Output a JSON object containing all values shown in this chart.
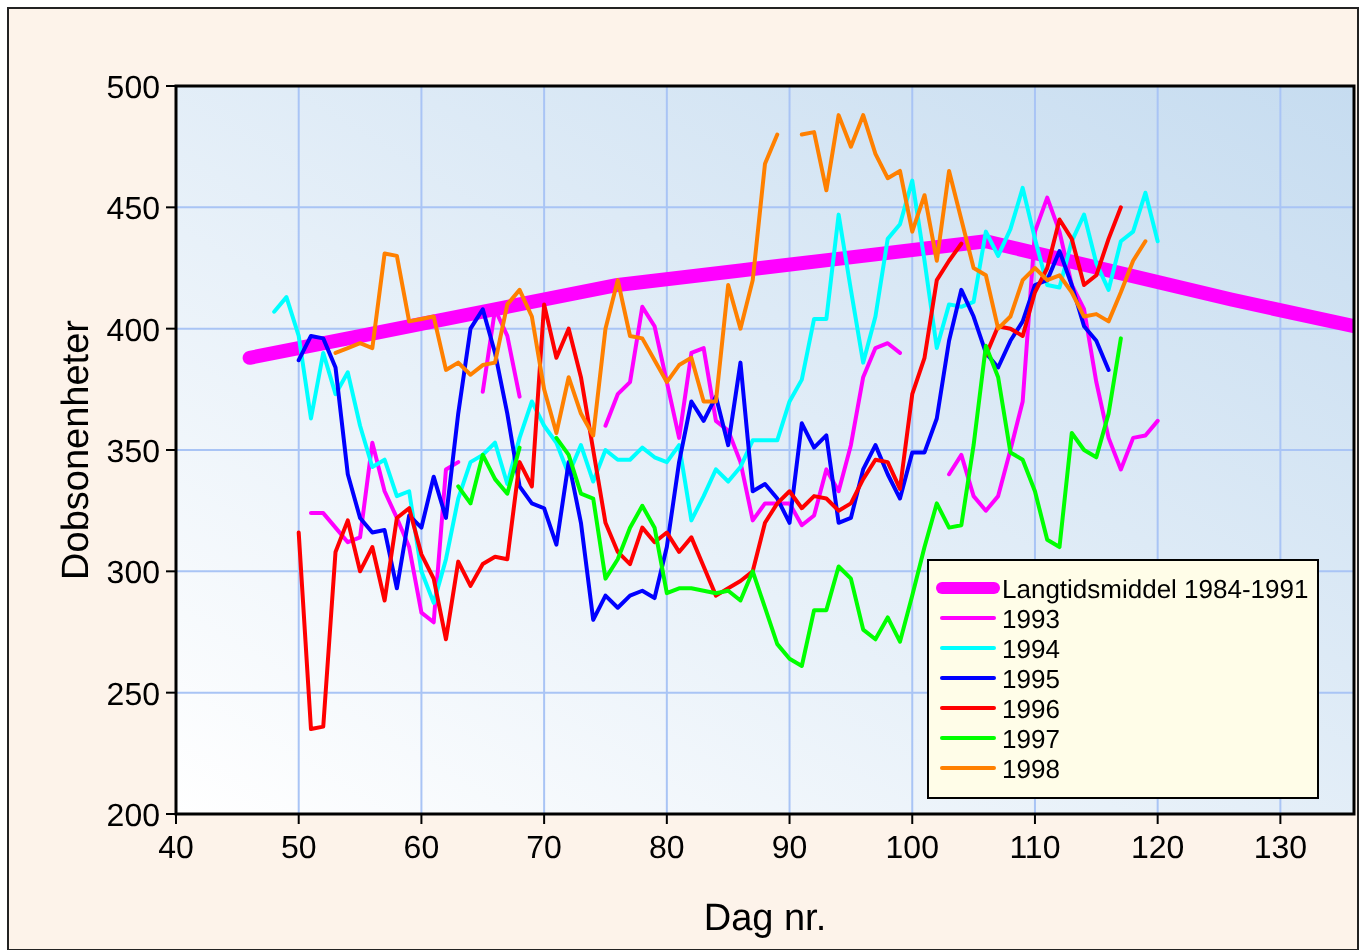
{
  "chart_data": {
    "type": "line",
    "xlabel": "Dag nr.",
    "ylabel": "Dobsonenheter",
    "xlim": [
      40,
      136
    ],
    "ylim": [
      200,
      500
    ],
    "xticks": [
      40,
      50,
      60,
      70,
      80,
      90,
      100,
      110,
      120,
      130
    ],
    "yticks": [
      200,
      250,
      300,
      350,
      400,
      450,
      500
    ],
    "grid": true,
    "legend": "bottom right",
    "line_style": "solid",
    "series": [
      {
        "name": "Langtidsmiddel 1984-1991",
        "color": "#ff00ff",
        "x": [
          46,
          56,
          66,
          76,
          86,
          96,
          106,
          116,
          126,
          136
        ],
        "values": [
          388,
          398,
          408,
          418,
          424,
          430,
          436,
          424,
          412,
          401
        ]
      },
      {
        "name": "1993",
        "color": "#ff00ff",
        "x": [
          51,
          52,
          53,
          54,
          55,
          56,
          57,
          58,
          59,
          60,
          61,
          62,
          63,
          64,
          65,
          66,
          67,
          68,
          69,
          75,
          76,
          77,
          78,
          79,
          80,
          81,
          82,
          83,
          84,
          85,
          86,
          87,
          88,
          89,
          90,
          91,
          92,
          93,
          94,
          95,
          96,
          97,
          98,
          99,
          100,
          103,
          104,
          105,
          106,
          107,
          108,
          109,
          110,
          111,
          112,
          113,
          114,
          115,
          116,
          117,
          118,
          119,
          120
        ],
        "values": [
          324,
          324,
          318,
          312,
          314,
          353,
          333,
          322,
          310,
          283,
          279,
          342,
          345,
          null,
          374,
          408,
          397,
          372,
          null,
          360,
          373,
          378,
          409,
          401,
          378,
          355,
          390,
          392,
          362,
          358,
          345,
          321,
          328,
          328,
          328,
          319,
          323,
          342,
          333,
          352,
          380,
          392,
          394,
          390,
          null,
          340,
          348,
          331,
          325,
          331,
          350,
          370,
          440,
          454,
          440,
          418,
          408,
          378,
          355,
          342,
          355,
          356,
          362
        ]
      },
      {
        "name": "1994",
        "color": "#00ffff",
        "x": [
          48,
          49,
          50,
          51,
          52,
          53,
          54,
          55,
          56,
          57,
          58,
          59,
          60,
          61,
          62,
          63,
          64,
          65,
          66,
          67,
          68,
          69,
          70,
          71,
          72,
          73,
          74,
          75,
          76,
          77,
          78,
          79,
          80,
          81,
          82,
          83,
          84,
          85,
          86,
          87,
          88,
          89,
          90,
          91,
          92,
          93,
          94,
          95,
          96,
          97,
          98,
          99,
          100,
          101,
          102,
          103,
          104,
          105,
          106,
          107,
          108,
          109,
          110,
          111,
          112,
          113,
          114,
          115,
          116,
          117,
          118,
          119,
          120
        ],
        "values": [
          407,
          413,
          397,
          363,
          390,
          373,
          382,
          360,
          343,
          346,
          331,
          333,
          300,
          287,
          305,
          330,
          345,
          348,
          353,
          336,
          355,
          370,
          360,
          353,
          340,
          352,
          337,
          350,
          346,
          346,
          351,
          347,
          345,
          352,
          321,
          331,
          342,
          337,
          343,
          354,
          354,
          354,
          370,
          379,
          404,
          404,
          447,
          416,
          386,
          405,
          437,
          443,
          461,
          428,
          392,
          410,
          409,
          411,
          440,
          430,
          441,
          458,
          437,
          418,
          417,
          436,
          447,
          427,
          416,
          436,
          440,
          456,
          436
        ]
      },
      {
        "name": "1995",
        "color": "#0000ff",
        "x": [
          50,
          51,
          52,
          53,
          54,
          55,
          56,
          57,
          58,
          59,
          60,
          61,
          62,
          63,
          64,
          65,
          66,
          67,
          68,
          69,
          70,
          71,
          72,
          73,
          74,
          75,
          76,
          77,
          78,
          79,
          80,
          81,
          82,
          83,
          84,
          85,
          86,
          87,
          88,
          89,
          90,
          91,
          92,
          93,
          94,
          95,
          96,
          97,
          98,
          99,
          100,
          101,
          102,
          103,
          104,
          105,
          106,
          107,
          108,
          109,
          110,
          111,
          112,
          113,
          114,
          115,
          116
        ],
        "values": [
          387,
          397,
          396,
          384,
          340,
          322,
          316,
          317,
          293,
          323,
          318,
          339,
          322,
          365,
          400,
          408,
          390,
          365,
          335,
          328,
          326,
          311,
          345,
          320,
          280,
          290,
          285,
          290,
          292,
          289,
          310,
          345,
          370,
          362,
          372,
          352,
          386,
          333,
          336,
          330,
          320,
          361,
          351,
          356,
          320,
          322,
          342,
          352,
          340,
          330,
          349,
          349,
          363,
          395,
          416,
          405,
          390,
          384,
          395,
          403,
          418,
          420,
          432,
          418,
          401,
          395,
          383
        ]
      },
      {
        "name": "1996",
        "color": "#ff0000",
        "x": [
          50,
          51,
          52,
          53,
          54,
          55,
          56,
          57,
          58,
          59,
          60,
          61,
          62,
          63,
          64,
          65,
          66,
          67,
          68,
          69,
          70,
          71,
          72,
          73,
          74,
          75,
          76,
          77,
          78,
          79,
          80,
          81,
          82,
          83,
          84,
          85,
          86,
          87,
          88,
          89,
          90,
          91,
          92,
          93,
          94,
          95,
          96,
          97,
          98,
          99,
          100,
          101,
          102,
          103,
          104,
          105,
          106,
          107,
          108,
          109,
          110,
          111,
          112,
          113,
          114,
          115,
          116,
          117
        ],
        "values": [
          316,
          235,
          236,
          308,
          321,
          300,
          310,
          288,
          322,
          326,
          307,
          297,
          272,
          304,
          294,
          303,
          306,
          305,
          345,
          335,
          410,
          388,
          400,
          380,
          350,
          320,
          308,
          303,
          318,
          312,
          316,
          308,
          314,
          302,
          290,
          293,
          296,
          300,
          320,
          328,
          333,
          326,
          331,
          330,
          325,
          328,
          338,
          346,
          345,
          334,
          373,
          388,
          420,
          428,
          435,
          null,
          389,
          401,
          400,
          397,
          415,
          425,
          445,
          437,
          418,
          422,
          437,
          450
        ]
      },
      {
        "name": "1997",
        "color": "#00ff00",
        "x": [
          63,
          64,
          65,
          66,
          67,
          68,
          69,
          71,
          72,
          73,
          74,
          75,
          76,
          77,
          78,
          79,
          80,
          81,
          82,
          83,
          84,
          85,
          86,
          87,
          88,
          89,
          90,
          91,
          92,
          93,
          94,
          95,
          96,
          97,
          98,
          99,
          100,
          101,
          102,
          103,
          104,
          105,
          106,
          107,
          108,
          109,
          110,
          111,
          112,
          113,
          114,
          115,
          116,
          117
        ],
        "values": [
          335,
          328,
          348,
          338,
          332,
          351,
          null,
          355,
          348,
          332,
          330,
          297,
          305,
          318,
          327,
          318,
          291,
          293,
          293,
          292,
          291,
          292,
          288,
          300,
          285,
          270,
          264,
          261,
          284,
          284,
          302,
          297,
          276,
          272,
          281,
          271,
          290,
          310,
          328,
          318,
          319,
          352,
          393,
          380,
          349,
          346,
          333,
          313,
          310,
          357,
          350,
          347,
          365,
          396
        ]
      },
      {
        "name": "1998",
        "color": "#ff8000",
        "x": [
          53,
          54,
          55,
          56,
          57,
          58,
          59,
          60,
          61,
          62,
          63,
          64,
          65,
          66,
          67,
          68,
          69,
          70,
          71,
          72,
          73,
          74,
          75,
          76,
          77,
          78,
          79,
          80,
          81,
          82,
          83,
          84,
          85,
          86,
          87,
          88,
          89,
          90,
          91,
          92,
          93,
          94,
          95,
          96,
          97,
          98,
          99,
          100,
          101,
          102,
          103,
          104,
          105,
          106,
          107,
          108,
          109,
          110,
          111,
          112,
          113,
          114,
          115,
          116,
          117,
          118,
          119
        ],
        "values": [
          390,
          392,
          394,
          392,
          431,
          430,
          403,
          404,
          405,
          383,
          386,
          381,
          385,
          386,
          410,
          416,
          405,
          375,
          357,
          380,
          365,
          356,
          400,
          420,
          397,
          396,
          387,
          378,
          385,
          388,
          370,
          370,
          418,
          400,
          420,
          468,
          480,
          null,
          480,
          481,
          457,
          488,
          475,
          488,
          472,
          462,
          465,
          440,
          455,
          428,
          465,
          445,
          425,
          422,
          400,
          405,
          420,
          425,
          420,
          422,
          415,
          405,
          406,
          403,
          415,
          428,
          436
        ]
      }
    ]
  }
}
